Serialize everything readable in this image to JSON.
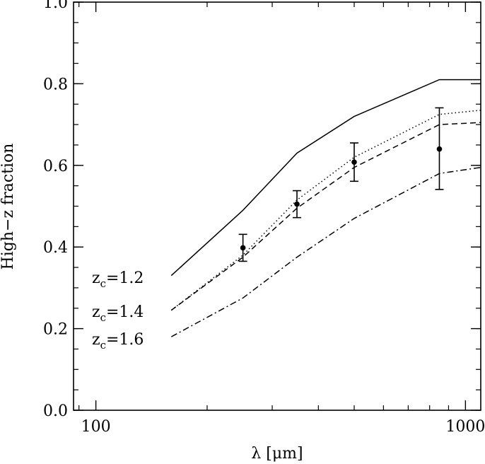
{
  "chart_data": {
    "type": "line",
    "xscale": "log",
    "xlim": [
      87,
      1100
    ],
    "ylim": [
      0.0,
      1.0
    ],
    "xlabel": "λ [μm]",
    "ylabel": "High−z fraction",
    "x_ticks": [
      100,
      1000
    ],
    "x_tick_labels": [
      "100",
      "1000"
    ],
    "y_ticks": [
      0.0,
      0.2,
      0.4,
      0.6,
      0.8,
      1.0
    ],
    "y_tick_labels": [
      "0.0",
      "0.2",
      "0.4",
      "0.6",
      "0.8",
      "1.0"
    ],
    "series": [
      {
        "name": "zc=1.2",
        "style": "solid",
        "x": [
          160,
          250,
          350,
          500,
          850,
          1100
        ],
        "y": [
          0.33,
          0.49,
          0.63,
          0.72,
          0.81,
          0.81
        ]
      },
      {
        "name": "",
        "style": "dotted",
        "x": [
          160,
          250,
          350,
          500,
          850,
          1100
        ],
        "y": [
          0.245,
          0.38,
          0.515,
          0.62,
          0.725,
          0.735
        ]
      },
      {
        "name": "zc=1.4",
        "style": "dashed",
        "x": [
          160,
          250,
          350,
          500,
          850,
          1100
        ],
        "y": [
          0.245,
          0.375,
          0.495,
          0.595,
          0.7,
          0.705
        ]
      },
      {
        "name": "zc=1.6",
        "style": "dashdot",
        "x": [
          160,
          250,
          350,
          500,
          850,
          1100
        ],
        "y": [
          0.18,
          0.275,
          0.375,
          0.47,
          0.58,
          0.595
        ]
      }
    ],
    "points": [
      {
        "x": 250,
        "y": 0.398,
        "err_low": 0.033,
        "err_high": 0.033
      },
      {
        "x": 350,
        "y": 0.505,
        "err_low": 0.033,
        "err_high": 0.033
      },
      {
        "x": 500,
        "y": 0.608,
        "err_low": 0.047,
        "err_high": 0.047
      },
      {
        "x": 850,
        "y": 0.64,
        "err_low": 0.099,
        "err_high": 0.101
      }
    ],
    "annotations": [
      {
        "base": "z",
        "sub": "c",
        "rest": "=1.2"
      },
      {
        "base": "z",
        "sub": "c",
        "rest": "=1.4"
      },
      {
        "base": "z",
        "sub": "c",
        "rest": "=1.6"
      }
    ]
  }
}
